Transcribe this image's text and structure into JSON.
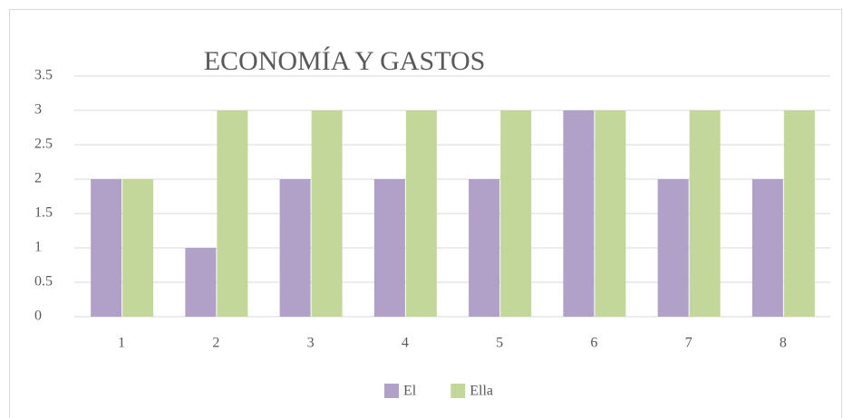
{
  "chart_data": {
    "type": "bar",
    "title": "ECONOMÍA Y GASTOS",
    "categories": [
      "1",
      "2",
      "3",
      "4",
      "5",
      "6",
      "7",
      "8"
    ],
    "series": [
      {
        "name": "El",
        "color": "#b1a0c7",
        "values": [
          2,
          1,
          2,
          2,
          2,
          3,
          2,
          2
        ]
      },
      {
        "name": "Ella",
        "color": "#c4d79b",
        "values": [
          2,
          3,
          3,
          3,
          3,
          3,
          3,
          3
        ]
      }
    ],
    "ylim": [
      0,
      3.5
    ],
    "yticks": [
      0,
      0.5,
      1,
      1.5,
      2,
      2.5,
      3,
      3.5
    ],
    "grid": true,
    "legend": "bottom"
  }
}
